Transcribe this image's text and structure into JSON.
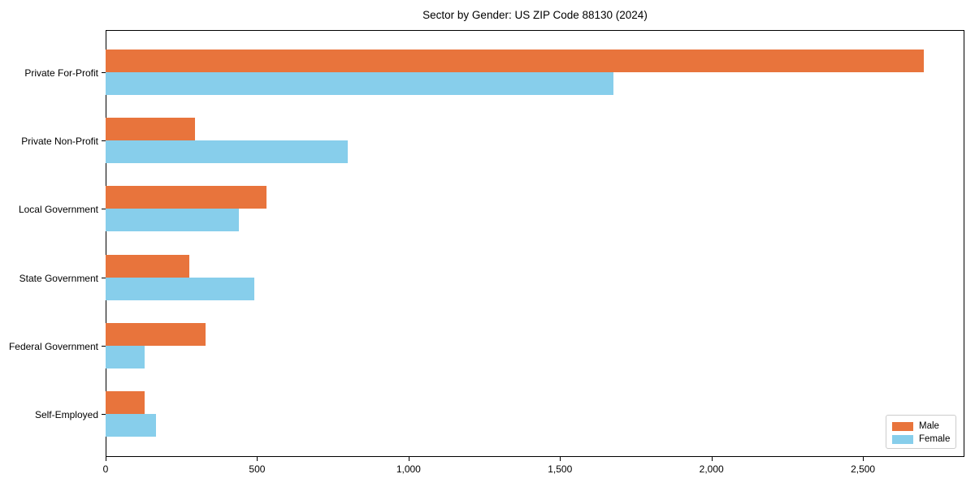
{
  "chart_data": {
    "type": "bar",
    "orientation": "horizontal",
    "title": "Sector by Gender: US ZIP Code 88130 (2024)",
    "categories": [
      "Private For-Profit",
      "Private Non-Profit",
      "Local Government",
      "State Government",
      "Federal Government",
      "Self-Employed"
    ],
    "series": [
      {
        "name": "Male",
        "color": "#E8743C",
        "values": [
          2700,
          295,
          530,
          275,
          330,
          130
        ]
      },
      {
        "name": "Female",
        "color": "#87CEEB",
        "values": [
          1675,
          800,
          440,
          490,
          130,
          165
        ]
      }
    ],
    "xlabel": "",
    "ylabel": "",
    "xlim": [
      0,
      2835
    ],
    "x_ticks": [
      0,
      500,
      1000,
      1500,
      2000,
      2500
    ],
    "x_tick_labels": [
      "0",
      "500",
      "1,000",
      "1,500",
      "2,000",
      "2,500"
    ],
    "legend": {
      "entries": [
        "Male",
        "Female"
      ],
      "position": "lower right"
    },
    "grid": false,
    "colors": {
      "background": "#FFFFFF",
      "spine": "#000000",
      "text": "#000000",
      "male": "#E8743C",
      "female": "#87CEEB"
    }
  }
}
